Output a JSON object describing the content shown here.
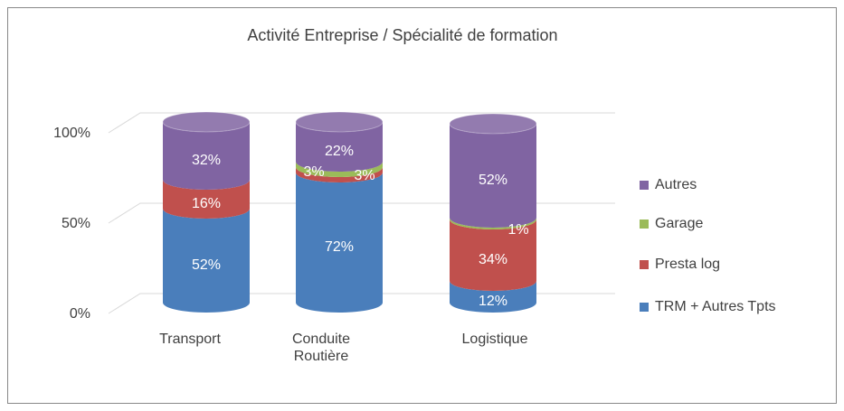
{
  "chart_data": {
    "type": "bar",
    "stacked": true,
    "title": "Activité  Entreprise / Spécialité de formation",
    "categories": [
      "Transport",
      "Conduite Routière",
      "Logistique"
    ],
    "series": [
      {
        "name": "TRM + Autres Tpts",
        "color": "#4a7ebb",
        "values": [
          52,
          72,
          12
        ],
        "value_labels": [
          "52%",
          "72%",
          "12%"
        ]
      },
      {
        "name": "Presta log",
        "color": "#c0504d",
        "values": [
          16,
          3,
          34
        ],
        "value_labels": [
          "16%",
          "3%",
          "34%"
        ]
      },
      {
        "name": "Garage",
        "color": "#9bbb59",
        "values": [
          0,
          3,
          1
        ],
        "value_labels": [
          null,
          "3%",
          "1%"
        ]
      },
      {
        "name": "Autres",
        "color": "#8064a2",
        "values": [
          32,
          22,
          52
        ],
        "value_labels": [
          "32%",
          "22%",
          "52%"
        ]
      }
    ],
    "ylim": [
      0,
      100
    ],
    "yticks": [
      {
        "value": 0,
        "label": "0%"
      },
      {
        "value": 50,
        "label": "50%"
      },
      {
        "value": 100,
        "label": "100%"
      }
    ],
    "grid": true,
    "legend": "right"
  }
}
